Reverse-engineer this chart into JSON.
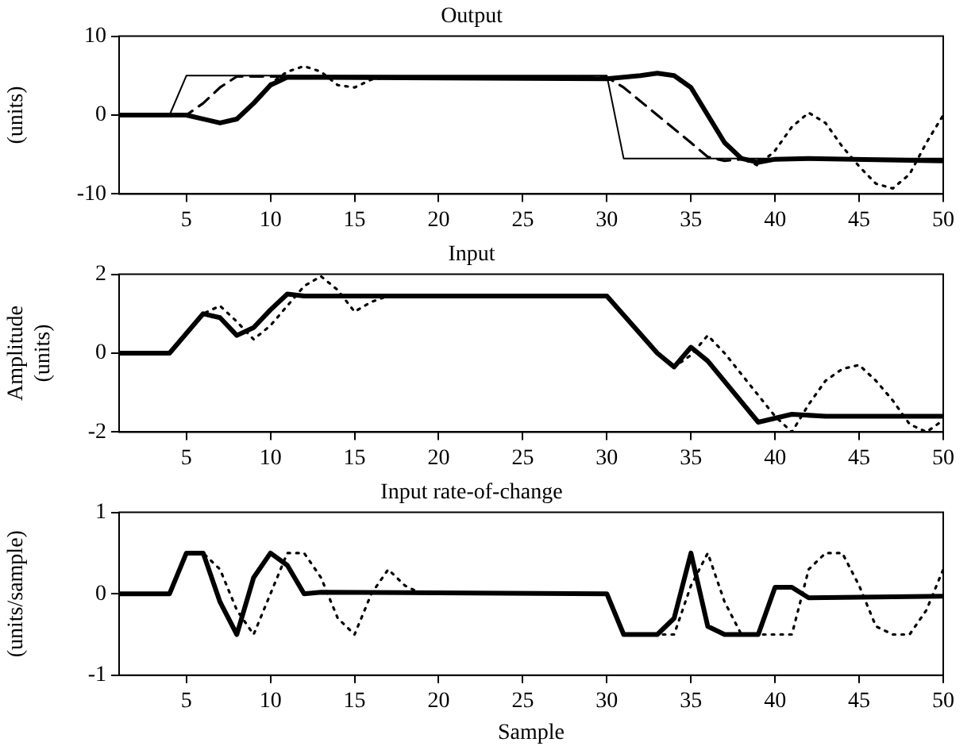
{
  "chart_data": [
    {
      "type": "line",
      "title": "Output",
      "ylabel": "(units)",
      "xlim": [
        1,
        50
      ],
      "xticks": [
        5,
        10,
        15,
        20,
        25,
        30,
        35,
        40,
        45,
        50
      ],
      "ylim": [
        -10,
        10
      ],
      "yticks": [
        -10,
        0,
        10
      ],
      "grid": false,
      "legend": false,
      "series": [
        {
          "color": "#000000",
          "line_style": "solid",
          "x": [
            1,
            4,
            5,
            30,
            31,
            50
          ],
          "values": [
            0,
            0,
            5,
            5,
            -5.5,
            -5.5
          ]
        },
        {
          "color": "#000000",
          "line_style": "dashed",
          "x": [
            1,
            5,
            6,
            7,
            8,
            30,
            31,
            33,
            35,
            36,
            37,
            38,
            50
          ],
          "values": [
            0,
            0,
            1.5,
            3.5,
            4.9,
            4.8,
            3.5,
            0,
            -3.5,
            -5.3,
            -5.8,
            -5.6,
            -5.6
          ]
        },
        {
          "color": "#000000",
          "line_style": "dotted",
          "x": [
            1,
            5,
            7,
            8,
            9,
            10,
            11,
            12,
            13,
            14,
            15,
            16,
            17,
            30,
            32,
            33,
            34,
            35,
            36,
            37,
            38,
            39,
            40,
            41,
            42,
            43,
            44,
            45,
            46,
            47,
            48,
            49,
            50
          ],
          "values": [
            0,
            0,
            -1,
            -0.5,
            1.5,
            4,
            5.5,
            6.2,
            5.5,
            3.8,
            3.5,
            4.5,
            4.8,
            4.6,
            5,
            5.3,
            5,
            3.5,
            0,
            -3.5,
            -5.5,
            -6.4,
            -4.5,
            -1.5,
            0.3,
            -1,
            -4,
            -6.5,
            -8.7,
            -9.3,
            -7.5,
            -3.5,
            0
          ]
        },
        {
          "color": "#000000",
          "line_style": "solid",
          "x": [
            1,
            5,
            7,
            8,
            9,
            10,
            11,
            30,
            32,
            33,
            34,
            35,
            36,
            37,
            38,
            39,
            40,
            42,
            50
          ],
          "values": [
            0,
            0,
            -1,
            -0.5,
            1.5,
            3.8,
            4.8,
            4.6,
            5,
            5.3,
            5,
            3.5,
            0,
            -3.5,
            -5.5,
            -6,
            -5.6,
            -5.5,
            -5.8
          ]
        }
      ]
    },
    {
      "type": "line",
      "title": "Input",
      "ylabel": "Amplitude (units)",
      "xlim": [
        1,
        50
      ],
      "xticks": [
        5,
        10,
        15,
        20,
        25,
        30,
        35,
        40,
        45,
        50
      ],
      "ylim": [
        -2,
        2
      ],
      "yticks": [
        -2,
        0,
        2
      ],
      "grid": false,
      "legend": false,
      "series": [
        {
          "color": "#000000",
          "line_style": "dotted",
          "x": [
            1,
            4,
            6,
            7,
            8,
            9,
            10,
            11,
            12,
            13,
            14,
            15,
            16,
            17,
            30,
            33,
            34,
            35,
            36,
            37,
            40,
            41,
            42,
            43,
            44,
            45,
            46,
            47,
            48,
            49,
            50
          ],
          "values": [
            0,
            0,
            1,
            1.2,
            0.8,
            0.35,
            0.7,
            1.2,
            1.7,
            1.95,
            1.6,
            1.05,
            1.3,
            1.45,
            1.45,
            0,
            -0.35,
            -0.05,
            0.45,
            0,
            -1.6,
            -2,
            -1.3,
            -0.7,
            -0.4,
            -0.3,
            -0.7,
            -1.2,
            -1.8,
            -2,
            -1.7
          ]
        },
        {
          "color": "#000000",
          "line_style": "solid",
          "x": [
            1,
            4,
            6,
            7,
            8,
            9,
            10,
            11,
            12,
            30,
            33,
            34,
            35,
            36,
            39,
            40,
            41,
            43,
            50
          ],
          "values": [
            0,
            0,
            1,
            0.9,
            0.45,
            0.65,
            1.1,
            1.5,
            1.45,
            1.45,
            0,
            -0.35,
            0.15,
            -0.2,
            -1.75,
            -1.65,
            -1.55,
            -1.6,
            -1.6
          ]
        }
      ]
    },
    {
      "type": "line",
      "title": "Input rate-of-change",
      "xlabel": "Sample",
      "ylabel": "(units/sample)",
      "xlim": [
        1,
        50
      ],
      "xticks": [
        5,
        10,
        15,
        20,
        25,
        30,
        35,
        40,
        45,
        50
      ],
      "ylim": [
        -1,
        1
      ],
      "yticks": [
        -1,
        0,
        1
      ],
      "grid": false,
      "legend": false,
      "series": [
        {
          "color": "#000000",
          "line_style": "dotted",
          "x": [
            1,
            4,
            5,
            6,
            7,
            8,
            9,
            10,
            11,
            12,
            13,
            14,
            15,
            16,
            17,
            18,
            19,
            30,
            31,
            33,
            34,
            35,
            36,
            37,
            38,
            41,
            42,
            43,
            44,
            45,
            46,
            47,
            48,
            49,
            50
          ],
          "values": [
            0,
            0,
            0.5,
            0.5,
            0.3,
            -0.2,
            -0.5,
            0,
            0.5,
            0.5,
            0.2,
            -0.3,
            -0.5,
            0,
            0.3,
            0.1,
            0,
            0,
            -0.5,
            -0.5,
            -0.5,
            0.1,
            0.5,
            -0.1,
            -0.5,
            -0.5,
            0.3,
            0.5,
            0.5,
            0.1,
            -0.4,
            -0.5,
            -0.5,
            -0.2,
            0.3
          ]
        },
        {
          "color": "#000000",
          "line_style": "solid",
          "x": [
            1,
            4,
            5,
            6,
            7,
            8,
            9,
            10,
            11,
            12,
            13,
            30,
            31,
            33,
            34,
            35,
            36,
            37,
            39,
            40,
            41,
            42,
            50
          ],
          "values": [
            0,
            0,
            0.5,
            0.5,
            -0.1,
            -0.5,
            0.2,
            0.5,
            0.35,
            0,
            0.02,
            0,
            -0.5,
            -0.5,
            -0.3,
            0.5,
            -0.4,
            -0.5,
            -0.5,
            0.08,
            0.08,
            -0.05,
            -0.03
          ]
        }
      ]
    }
  ]
}
